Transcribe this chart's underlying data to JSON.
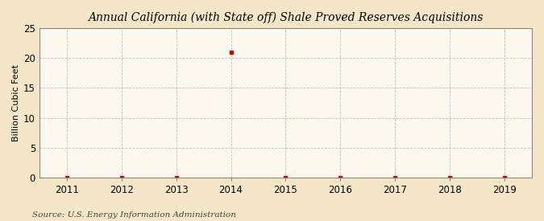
{
  "title": "Annual California (with State off) Shale Proved Reserves Acquisitions",
  "ylabel": "Billion Cubic Feet",
  "source": "Source: U.S. Energy Information Administration",
  "x_years": [
    2011,
    2012,
    2013,
    2014,
    2015,
    2016,
    2017,
    2018,
    2019
  ],
  "y_values": [
    0,
    0,
    0,
    21,
    0,
    0,
    0,
    0,
    0
  ],
  "xlim": [
    2010.5,
    2019.5
  ],
  "ylim": [
    0,
    25
  ],
  "yticks": [
    0,
    5,
    10,
    15,
    20,
    25
  ],
  "xticks": [
    2011,
    2012,
    2013,
    2014,
    2015,
    2016,
    2017,
    2018,
    2019
  ],
  "fig_bg_color": "#f5e6c8",
  "plot_bg_color": "#fdf8ee",
  "marker_color": "#cc0000",
  "grid_color": "#bbbbbb",
  "spine_color": "#888888",
  "title_fontsize": 10,
  "label_fontsize": 8,
  "tick_fontsize": 8.5,
  "source_fontsize": 7.5
}
